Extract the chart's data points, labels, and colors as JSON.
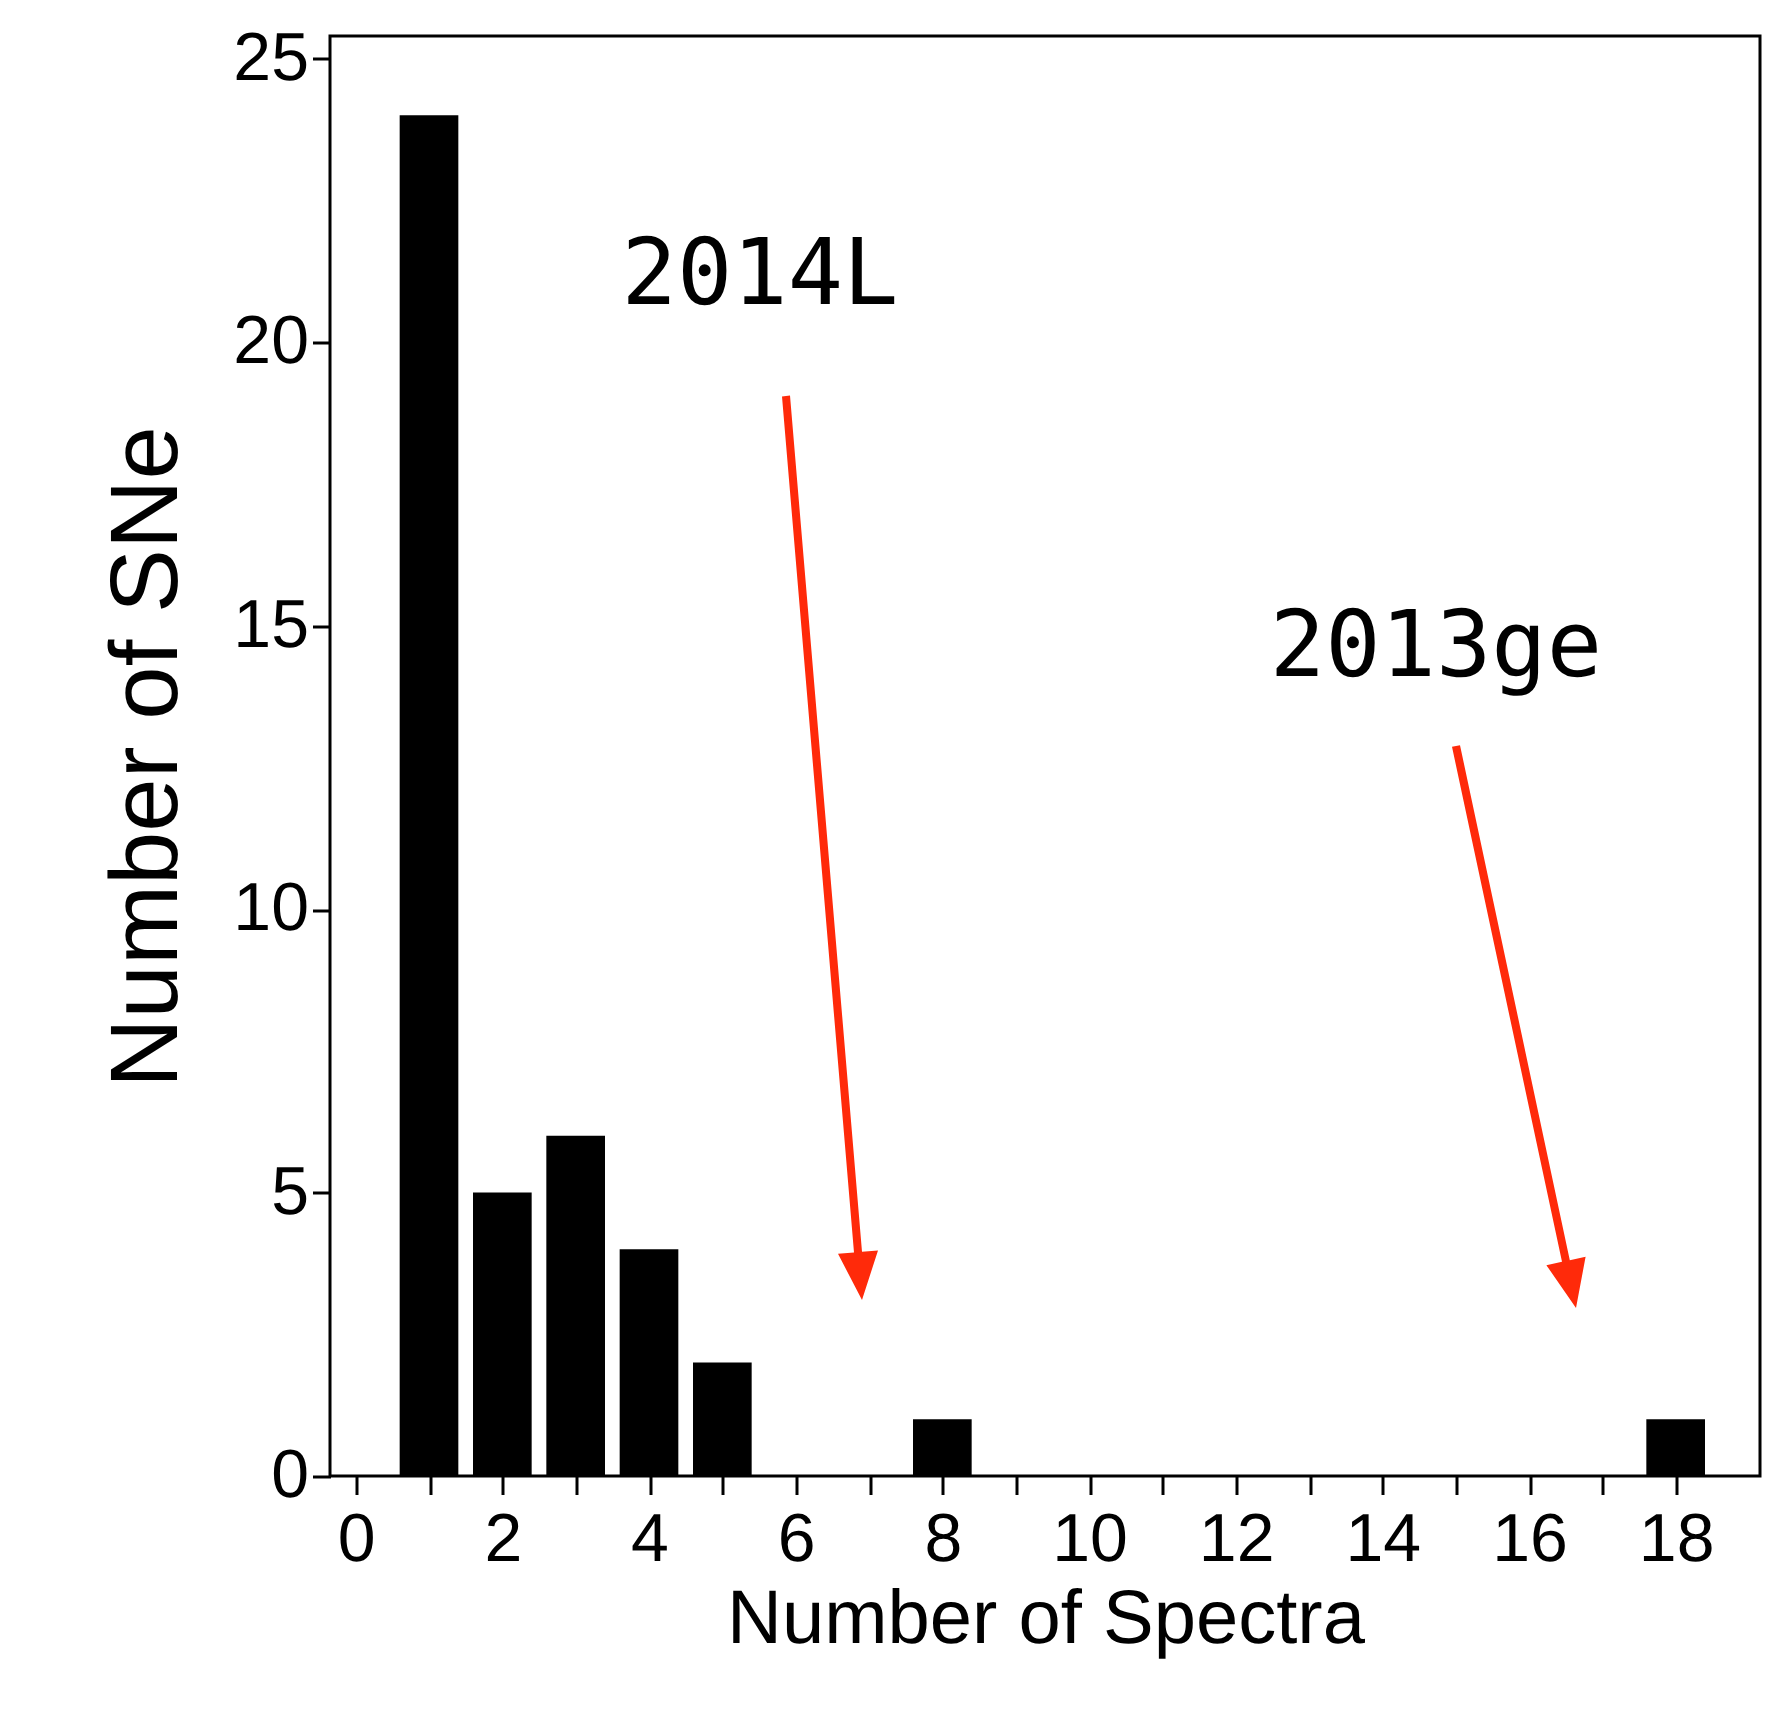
{
  "chart_data": {
    "type": "histogram",
    "xlabel": "Number of Spectra",
    "ylabel": "Number of SNe",
    "bins": [
      0.5,
      1.5,
      2.5,
      3.5,
      4.5,
      5.5,
      6.5,
      7.5,
      8.5,
      9.5,
      10.5,
      11.5,
      12.5,
      13.5,
      14.5,
      15.5,
      16.5,
      17.5,
      18.5
    ],
    "values": [
      24,
      5,
      6,
      4,
      2,
      0,
      0,
      1,
      0,
      0,
      0,
      0,
      0,
      0,
      0,
      0,
      0,
      1
    ],
    "color": "#000000",
    "xlim": [
      -0.35,
      19.15
    ],
    "xticks": [
      0,
      {
        "value": 1,
        "label": null
      },
      2,
      {
        "value": 3,
        "label": null
      },
      4,
      {
        "value": 5,
        "label": null
      },
      6,
      {
        "value": 7,
        "label": null
      },
      8,
      {
        "value": 9,
        "label": null
      },
      10,
      {
        "value": 11,
        "label": null
      },
      12,
      {
        "value": 13,
        "label": null
      },
      14,
      {
        "value": 15,
        "label": null
      },
      16,
      {
        "value": 17,
        "label": null
      },
      18
    ],
    "ylim": [
      0,
      25.4
    ],
    "yticks": [
      0,
      5,
      10,
      15,
      20,
      25
    ],
    "grid": false,
    "annotations": [
      "2014L",
      "2013ge"
    ]
  }
}
